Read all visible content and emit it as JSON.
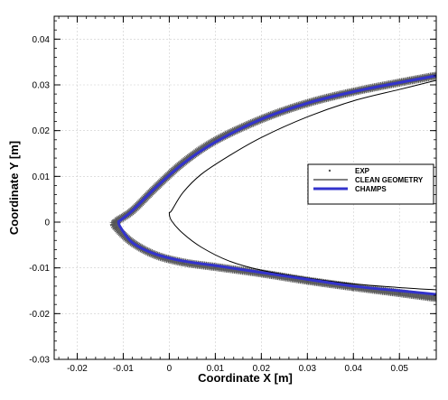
{
  "chart_data": {
    "type": "line",
    "title": "",
    "xlabel": "Coordinate X [m]",
    "ylabel": "Coordinate Y [m]",
    "xlim": [
      -0.025,
      0.058
    ],
    "ylim": [
      -0.03,
      0.045
    ],
    "x_ticks": [
      -0.02,
      -0.01,
      0,
      0.01,
      0.02,
      0.03,
      0.04,
      0.05
    ],
    "x_tick_labels": [
      "-0.02",
      "-0.01",
      "0",
      "0.01",
      "0.02",
      "0.03",
      "0.04",
      "0.05"
    ],
    "y_ticks": [
      -0.03,
      -0.02,
      -0.01,
      0,
      0.01,
      0.02,
      0.03,
      0.04
    ],
    "y_tick_labels": [
      "-0.03",
      "-0.02",
      "-0.01",
      "0",
      "0.01",
      "0.02",
      "0.03",
      "0.04"
    ],
    "grid": true,
    "legend_position": "right",
    "series": [
      {
        "name": "EXP",
        "style": "scatter",
        "color": "#555555",
        "x": [
          0.058,
          0.05,
          0.04,
          0.03,
          0.02,
          0.01,
          0.003,
          -0.003,
          -0.008,
          -0.0115,
          -0.012,
          -0.0115,
          -0.008,
          -0.003,
          0.003,
          0.01,
          0.02,
          0.03,
          0.04,
          0.05,
          0.058
        ],
        "y": [
          0.032,
          0.0305,
          0.0285,
          0.026,
          0.0225,
          0.0178,
          0.013,
          0.0075,
          0.0025,
          0.0002,
          0.0,
          -0.0012,
          -0.0045,
          -0.0072,
          -0.0088,
          -0.0098,
          -0.0112,
          -0.0128,
          -0.0142,
          -0.0155,
          -0.0166
        ]
      },
      {
        "name": "CLEAN GEOMETRY",
        "style": "line",
        "color": "#000000",
        "x": [
          0.058,
          0.05,
          0.04,
          0.03,
          0.02,
          0.013,
          0.007,
          0.003,
          0.0005,
          0.0,
          0.0005,
          0.003,
          0.007,
          0.013,
          0.02,
          0.03,
          0.04,
          0.05,
          0.058
        ],
        "y": [
          0.031,
          0.029,
          0.0265,
          0.023,
          0.0185,
          0.0145,
          0.0105,
          0.0065,
          0.0025,
          0.002,
          0.0003,
          -0.0025,
          -0.0055,
          -0.0085,
          -0.0105,
          -0.0122,
          -0.0135,
          -0.0143,
          -0.0148
        ]
      },
      {
        "name": "CHAMPS",
        "style": "line",
        "color": "#3333cc",
        "x": [
          0.058,
          0.05,
          0.04,
          0.03,
          0.02,
          0.01,
          0.003,
          -0.003,
          -0.008,
          -0.0105,
          -0.011,
          -0.0105,
          -0.008,
          -0.003,
          0.003,
          0.01,
          0.02,
          0.03,
          0.04,
          0.05,
          0.058
        ],
        "y": [
          0.032,
          0.0305,
          0.0285,
          0.026,
          0.0225,
          0.0175,
          0.0128,
          0.0075,
          0.0025,
          0.0005,
          0.0,
          -0.0013,
          -0.0045,
          -0.007,
          -0.0085,
          -0.0095,
          -0.011,
          -0.0125,
          -0.014,
          -0.015,
          -0.0158
        ]
      }
    ]
  }
}
